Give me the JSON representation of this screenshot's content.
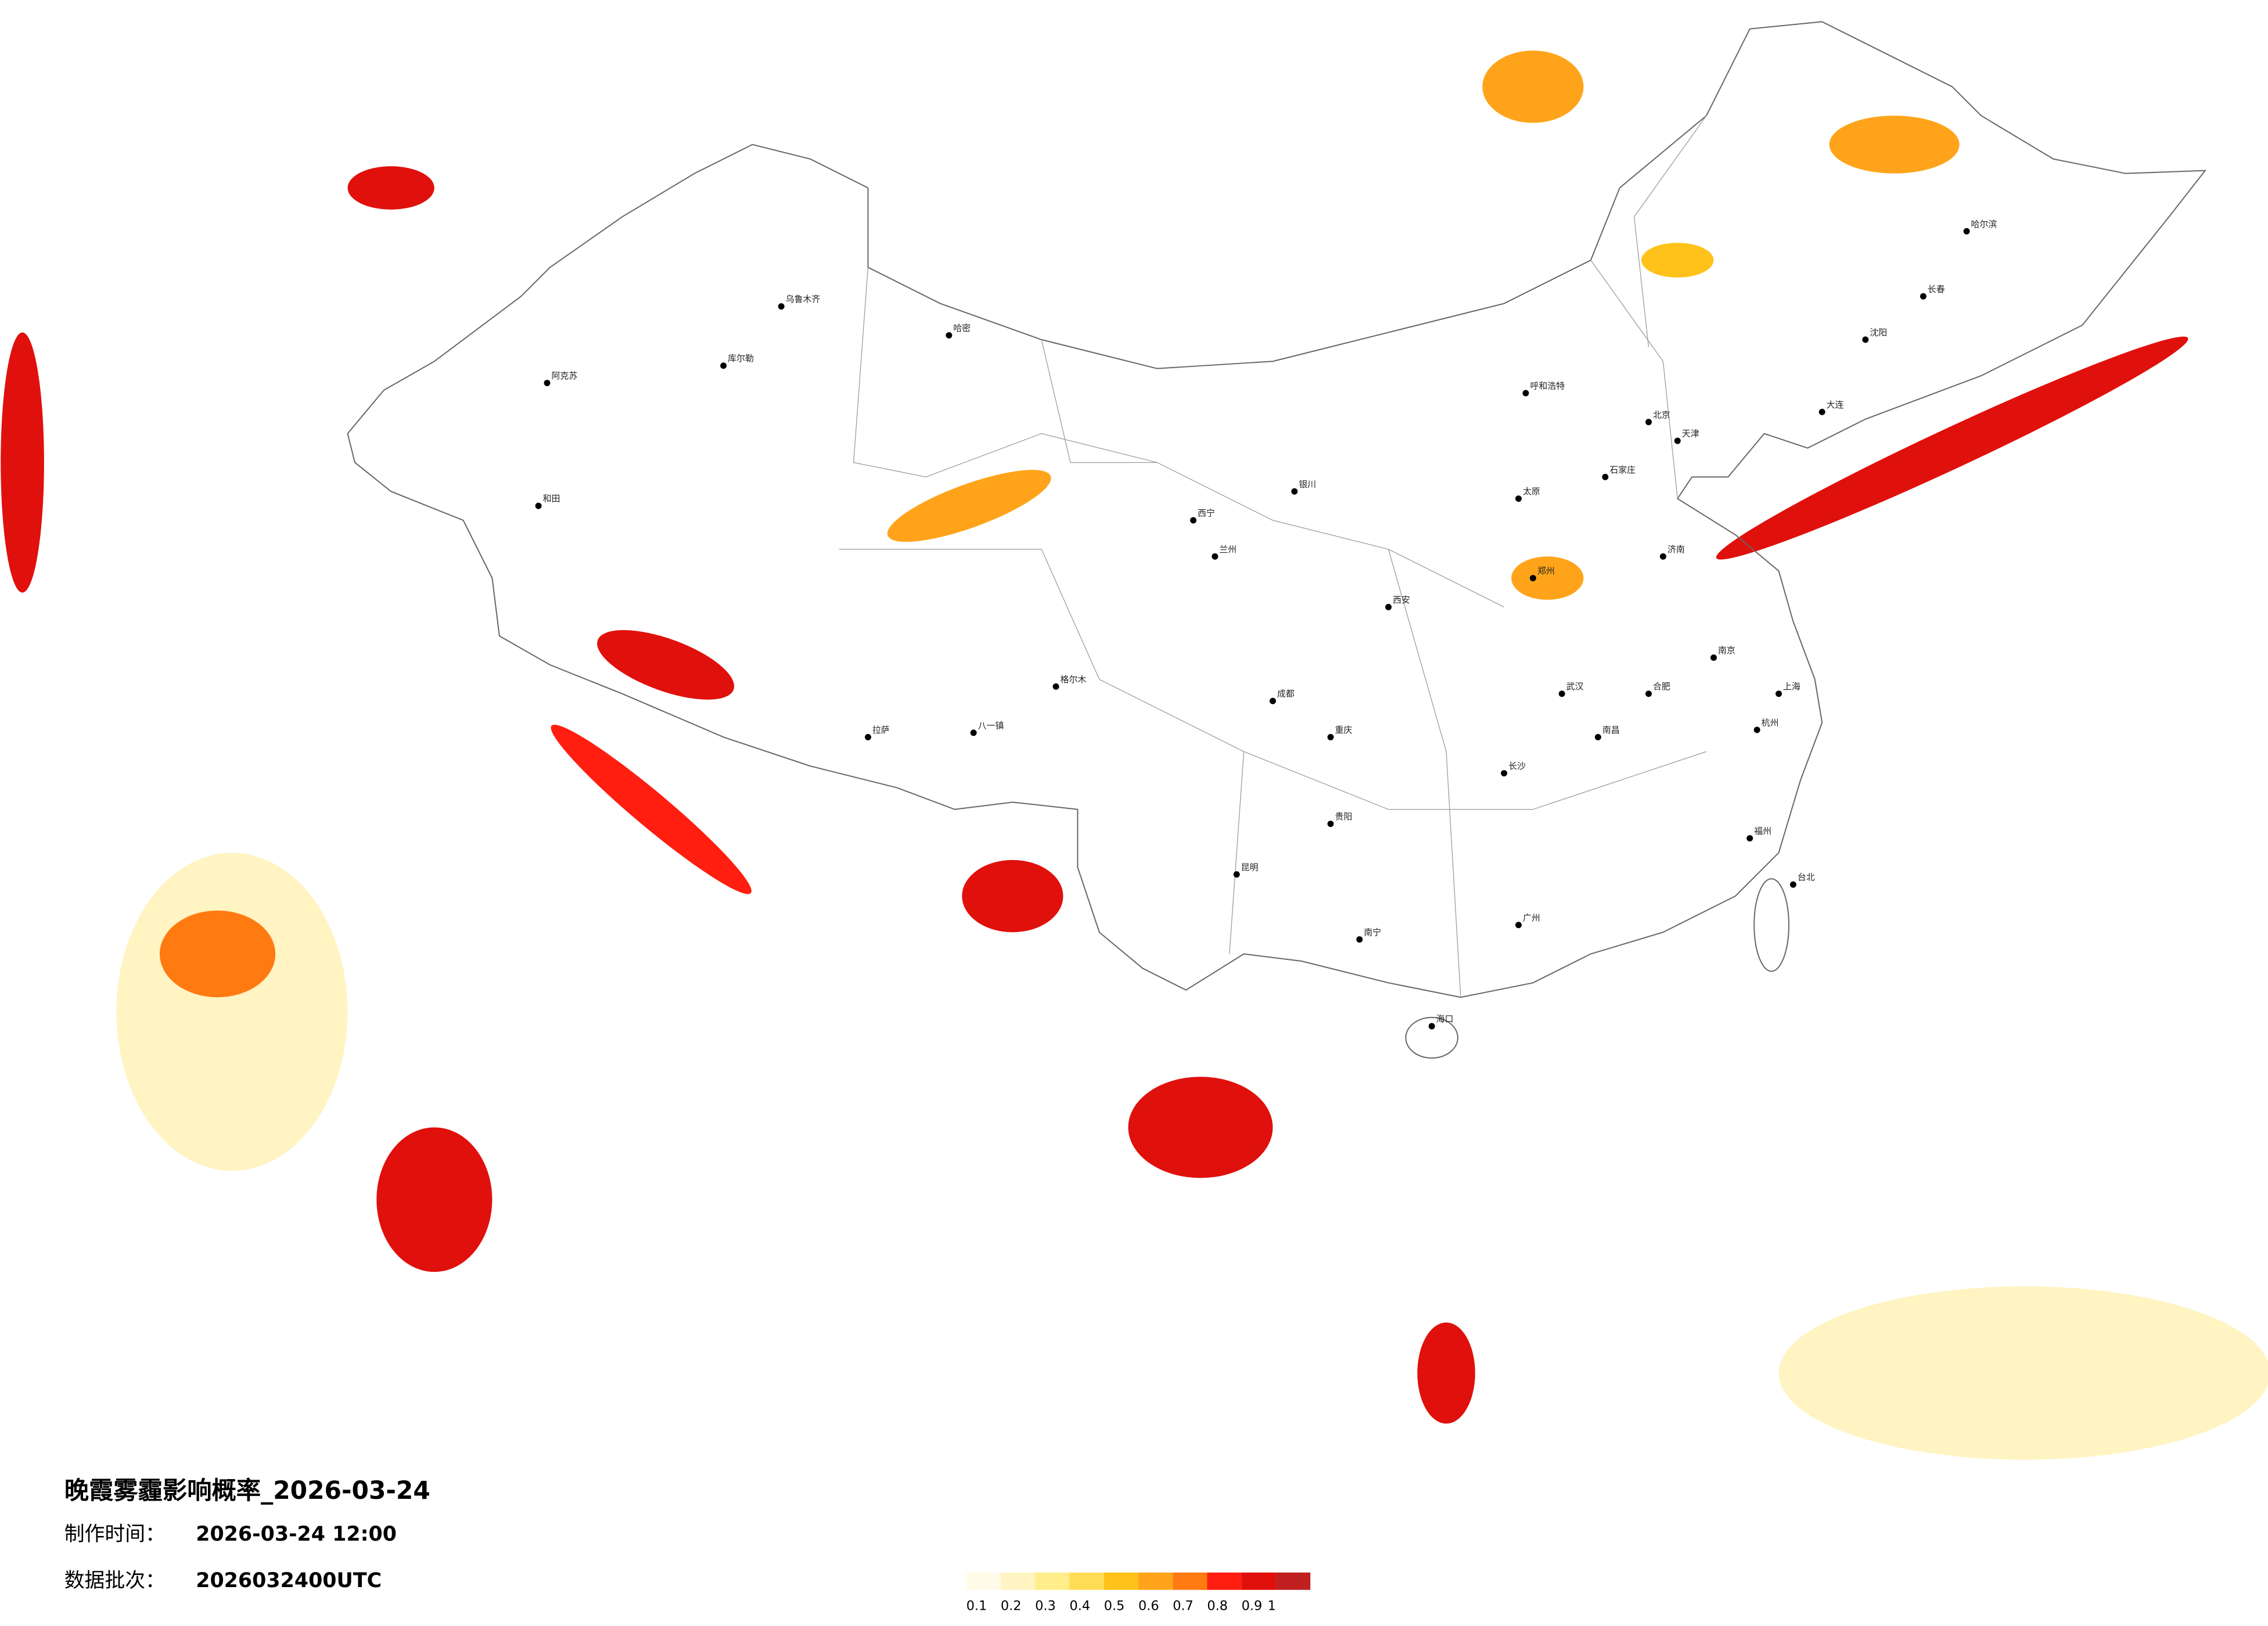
{
  "header": {
    "title": "晚霞雾霾影响概率_2026-03-24",
    "made_label": "制作时间：",
    "made_value": "2026-03-24 12:00",
    "batch_label": "数据批次：",
    "batch_value": "2026032400UTC"
  },
  "legend": {
    "colors": [
      "#fffbe8",
      "#fff4c2",
      "#ffee8a",
      "#ffdc55",
      "#ffc21a",
      "#ffa41a",
      "#ff7a10",
      "#ff1e10",
      "#e0100c",
      "#c02020"
    ],
    "ticks": [
      0.1,
      0.2,
      0.3,
      0.4,
      0.5,
      0.6,
      0.7,
      0.8,
      0.9,
      1
    ]
  },
  "hotspots": [
    0.2,
    0.2,
    0.9,
    0.9,
    0.6,
    0.9,
    0.7,
    0.9,
    0.9,
    0.9,
    0.6,
    0.5,
    0.6,
    0.9,
    0.9,
    0.8,
    0.6
  ],
  "cities": [
    "乌鲁木齐",
    "哈密",
    "库尔勒",
    "阿克苏",
    "和田",
    "拉萨",
    "八一镇",
    "格尔木",
    "西宁",
    "兰州",
    "银川",
    "呼和浩特",
    "北京",
    "天津",
    "石家庄",
    "太原",
    "郑州",
    "西安",
    "成都",
    "重庆",
    "昆明",
    "贵阳",
    "南宁",
    "长沙",
    "武汉",
    "南昌",
    "合肥",
    "南京",
    "上海",
    "杭州",
    "福州",
    "广州",
    "海口",
    "济南",
    "沈阳",
    "长春",
    "哈尔滨",
    "大连",
    "台北"
  ]
}
